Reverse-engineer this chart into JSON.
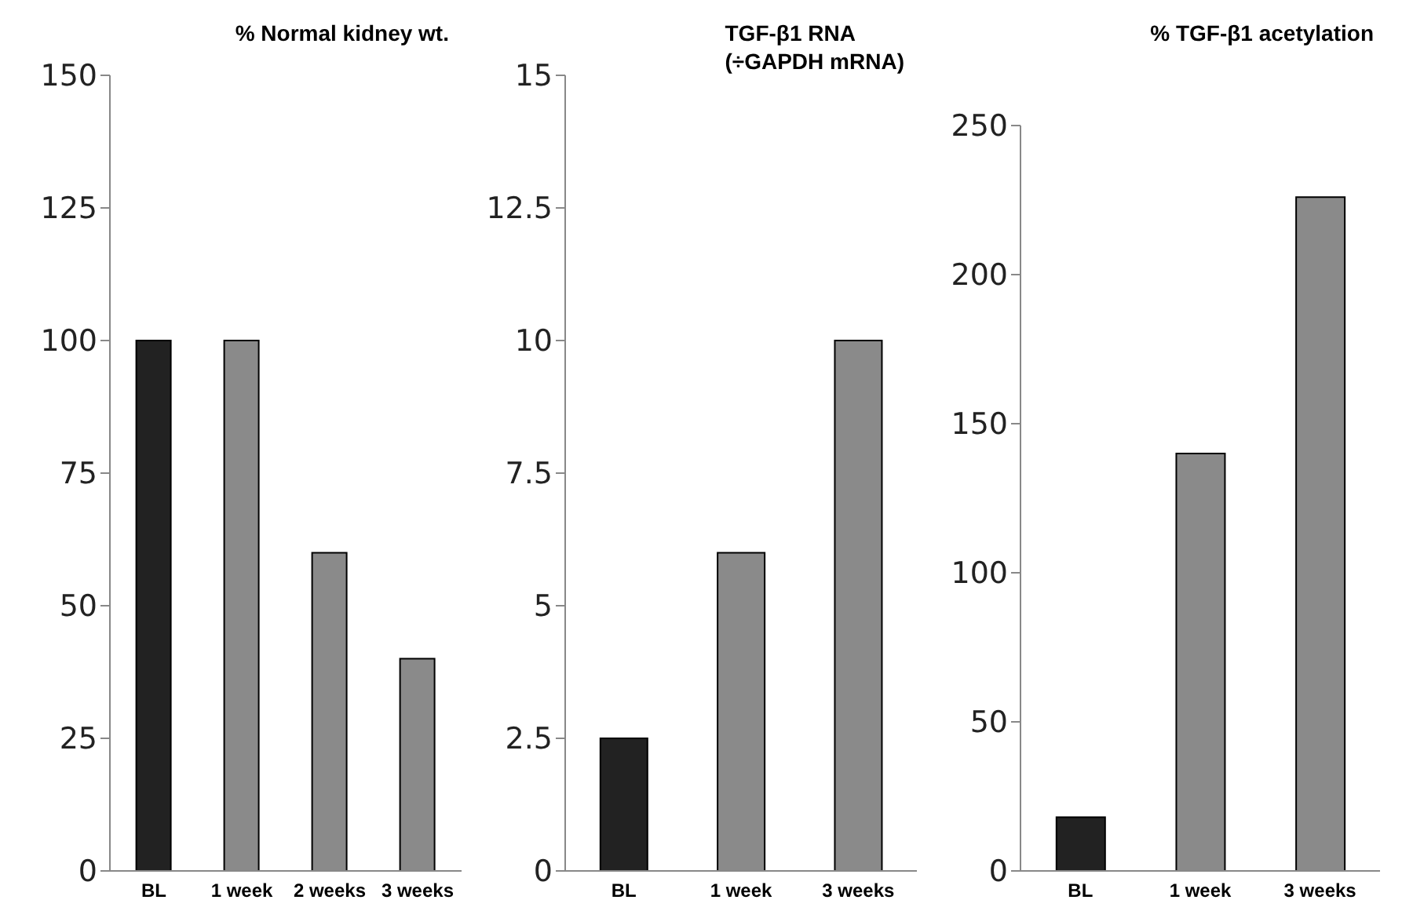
{
  "chart_data": [
    {
      "type": "bar",
      "title": "% Normal kidney wt.",
      "categories": [
        "BL",
        "1 week",
        "2 weeks",
        "3 weeks"
      ],
      "values": [
        100,
        100,
        60,
        40
      ],
      "colors": [
        "#222222",
        "#8a8a8a",
        "#8a8a8a",
        "#8a8a8a"
      ],
      "ylim": [
        0,
        150
      ],
      "yticks": [
        0,
        25,
        50,
        75,
        100,
        125,
        150
      ],
      "grid": false
    },
    {
      "type": "bar",
      "title": "TGF-β1 RNA\n(÷GAPDH mRNA)",
      "categories": [
        "BL",
        "1 week",
        "3 weeks"
      ],
      "values": [
        2.5,
        6,
        10
      ],
      "colors": [
        "#222222",
        "#8a8a8a",
        "#8a8a8a"
      ],
      "ylim": [
        0,
        15
      ],
      "yticks": [
        0,
        2.5,
        5,
        7.5,
        10,
        12.5,
        15
      ],
      "grid": false
    },
    {
      "type": "bar",
      "title": "% TGF-β1 acetylation",
      "categories": [
        "BL",
        "1 week",
        "3 weeks"
      ],
      "values": [
        18,
        140,
        226
      ],
      "colors": [
        "#222222",
        "#8a8a8a",
        "#8a8a8a"
      ],
      "ylim": [
        0,
        250
      ],
      "yticks": [
        0,
        50,
        100,
        150,
        200,
        250
      ],
      "grid": false
    }
  ]
}
